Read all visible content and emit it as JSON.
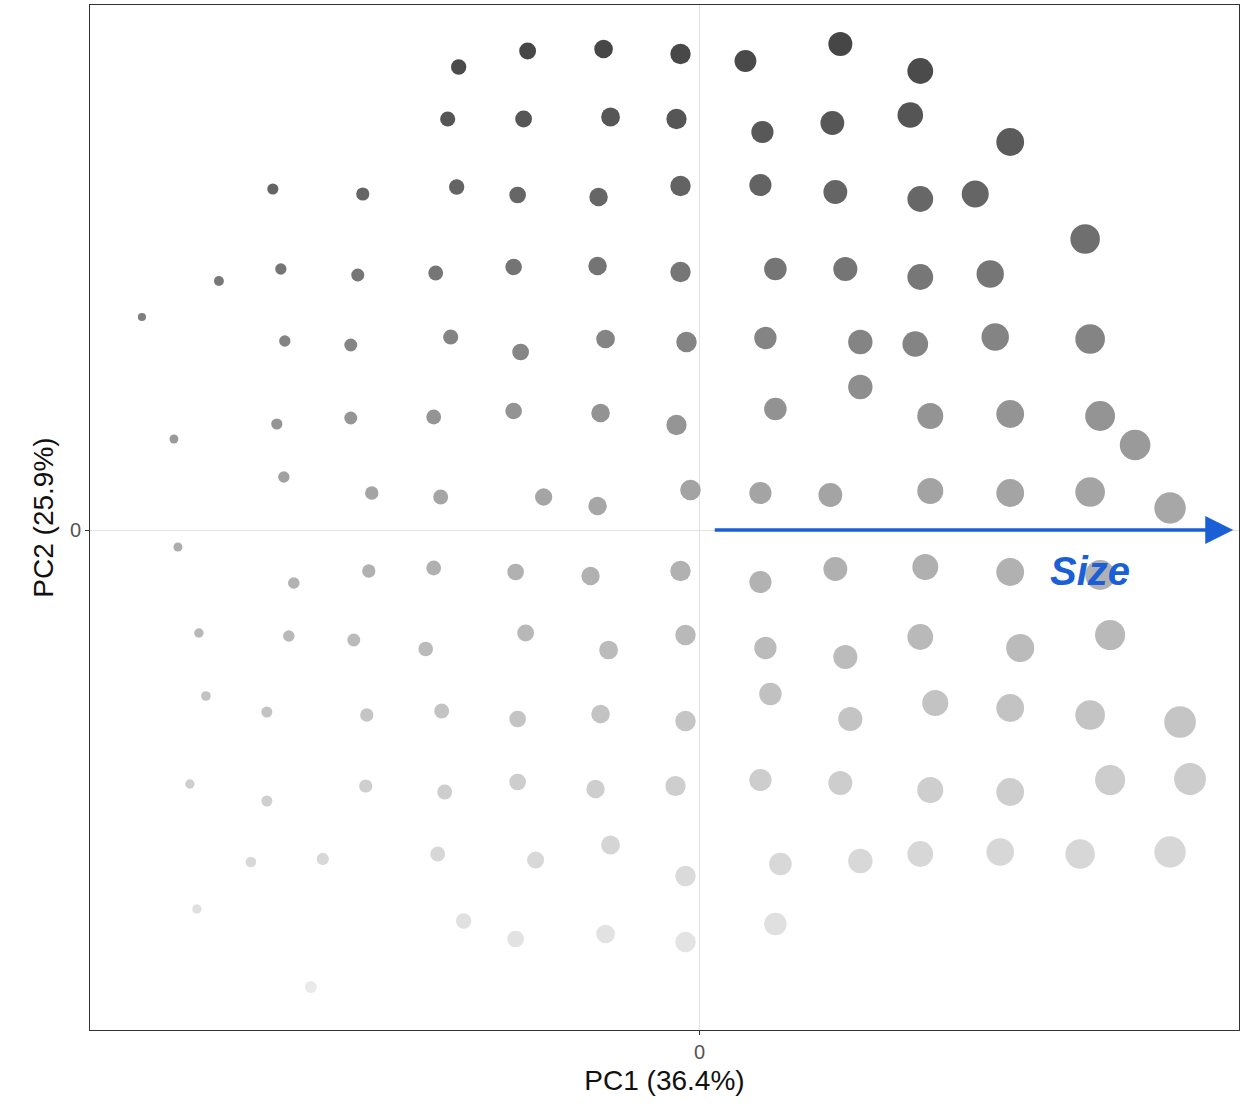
{
  "chart_data": {
    "type": "scatter",
    "x_label": "PC1 (36.4%)",
    "y_label": "PC2 (25.9%)",
    "annotations": [
      "Size"
    ],
    "marker": "circle",
    "grid": true,
    "xlim": [
      -6.1,
      5.4
    ],
    "ylim": [
      -5.0,
      5.25
    ],
    "xticks": [
      0
    ],
    "yticks": [
      0
    ],
    "x": [
      -2.41,
      -1.72,
      -0.96,
      -0.19,
      0.46,
      1.41,
      2.21,
      3.11,
      -2.52,
      -1.76,
      -0.89,
      -0.23,
      0.63,
      1.33,
      2.11,
      -4.27,
      -3.37,
      -2.43,
      -1.82,
      -1.01,
      -0.19,
      0.61,
      1.36,
      2.21,
      2.76,
      -4.81,
      -4.19,
      -3.42,
      -2.64,
      -1.86,
      -1.02,
      -0.19,
      0.76,
      1.46,
      2.21,
      2.91,
      3.86,
      -5.58,
      -4.15,
      -3.49,
      -2.49,
      -1.79,
      -0.94,
      -0.13,
      0.66,
      1.61,
      2.16,
      2.96,
      3.91,
      -5.26,
      -4.23,
      -3.49,
      -2.66,
      -1.86,
      -0.99,
      -0.23,
      0.76,
      1.61,
      2.31,
      3.11,
      4.01,
      4.36,
      -4.16,
      -3.28,
      -2.59,
      -1.56,
      -1.02,
      -0.09,
      0.61,
      1.31,
      2.31,
      3.11,
      3.91,
      4.71,
      -5.22,
      -4.06,
      -3.31,
      -2.66,
      -1.84,
      -1.09,
      -0.19,
      0.61,
      1.36,
      2.26,
      3.11,
      4.01,
      -5.01,
      -4.11,
      -3.46,
      -2.74,
      -1.74,
      -0.91,
      -0.14,
      0.66,
      1.46,
      2.21,
      3.21,
      4.11,
      -4.94,
      -4.33,
      -3.33,
      -2.58,
      -1.82,
      -0.99,
      -0.14,
      0.71,
      1.51,
      2.36,
      3.11,
      3.91,
      4.81,
      -5.1,
      -4.33,
      -3.34,
      -2.55,
      -1.82,
      -1.04,
      -0.24,
      0.61,
      1.41,
      2.31,
      3.11,
      4.11,
      4.91,
      -4.49,
      -3.77,
      -2.62,
      -1.64,
      -0.89,
      -0.14,
      0.81,
      1.61,
      2.21,
      3.01,
      3.81,
      4.71,
      -5.03,
      -2.36,
      -1.84,
      -0.94,
      -0.14,
      0.76,
      -3.89
    ],
    "y": [
      4.63,
      4.79,
      4.81,
      4.76,
      4.69,
      4.86,
      4.59,
      3.88,
      4.11,
      4.11,
      4.13,
      4.11,
      3.98,
      4.07,
      4.15,
      3.41,
      3.36,
      3.43,
      3.35,
      3.33,
      3.44,
      3.45,
      3.38,
      3.31,
      3.36,
      2.49,
      2.61,
      2.55,
      2.57,
      2.63,
      2.64,
      2.58,
      2.61,
      2.61,
      2.53,
      2.56,
      2.91,
      2.13,
      1.89,
      1.85,
      1.93,
      1.78,
      1.91,
      1.88,
      1.92,
      1.88,
      1.86,
      1.93,
      1.91,
      0.91,
      1.06,
      1.12,
      1.13,
      1.19,
      1.17,
      1.05,
      1.21,
      1.43,
      1.14,
      1.16,
      1.14,
      0.85,
      0.53,
      0.37,
      0.33,
      0.33,
      0.24,
      0.4,
      0.37,
      0.35,
      0.39,
      0.37,
      0.38,
      0.22,
      -0.17,
      -0.53,
      -0.41,
      -0.38,
      -0.42,
      -0.46,
      -0.41,
      -0.52,
      -0.39,
      -0.37,
      -0.42,
      -0.45,
      -1.03,
      -1.06,
      -1.1,
      -1.19,
      -1.03,
      -1.2,
      -1.05,
      -1.18,
      -1.27,
      -1.07,
      -1.18,
      -1.05,
      -1.66,
      -1.82,
      -1.85,
      -1.81,
      -1.89,
      -1.84,
      -1.91,
      -1.64,
      -1.89,
      -1.73,
      -1.78,
      -1.85,
      -1.92,
      -2.54,
      -2.71,
      -2.56,
      -2.62,
      -2.52,
      -2.59,
      -2.56,
      -2.5,
      -2.53,
      -2.6,
      -2.62,
      -2.5,
      -2.49,
      -3.32,
      -3.29,
      -3.24,
      -3.3,
      -3.15,
      -3.46,
      -3.34,
      -3.31,
      -3.24,
      -3.22,
      -3.24,
      -3.22,
      -3.79,
      -3.91,
      -4.09,
      -4.04,
      -4.12,
      -3.94,
      -4.57
    ]
  }
}
